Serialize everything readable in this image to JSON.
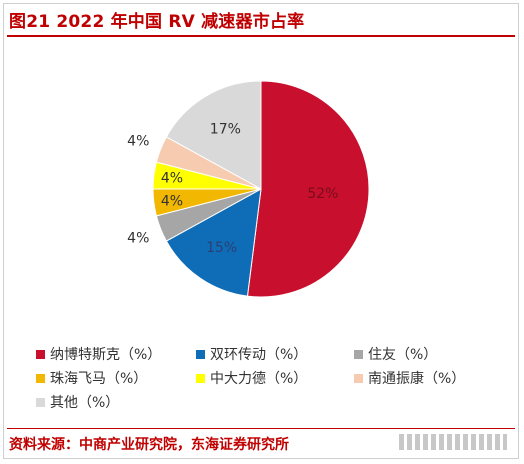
{
  "title": "图21  2022 年中国 RV 减速器市占率",
  "source": "资料来源：中商产业研究院，东海证券研究所",
  "chart_data": {
    "type": "pie",
    "categories": [
      "纳博特斯克（%）",
      "双环传动（%）",
      "住友（%）",
      "珠海飞马（%）",
      "中大力德（%）",
      "南通振康（%）",
      "其他（%）"
    ],
    "values": [
      52,
      15,
      4,
      4,
      4,
      4,
      17
    ],
    "data_labels": [
      "52%",
      "15%",
      "4%",
      "4%",
      "4%",
      "4%",
      "17%"
    ],
    "colors": [
      "#c8102e",
      "#0f6db8",
      "#a6a6a6",
      "#f2b700",
      "#ffff00",
      "#f7cbb0",
      "#d9d9d9"
    ],
    "label_colors": [
      "#7a0c1b",
      "#2a3f73",
      "#333333",
      "#333333",
      "#333333",
      "#333333",
      "#333333"
    ],
    "legend_placement": "bottom"
  }
}
